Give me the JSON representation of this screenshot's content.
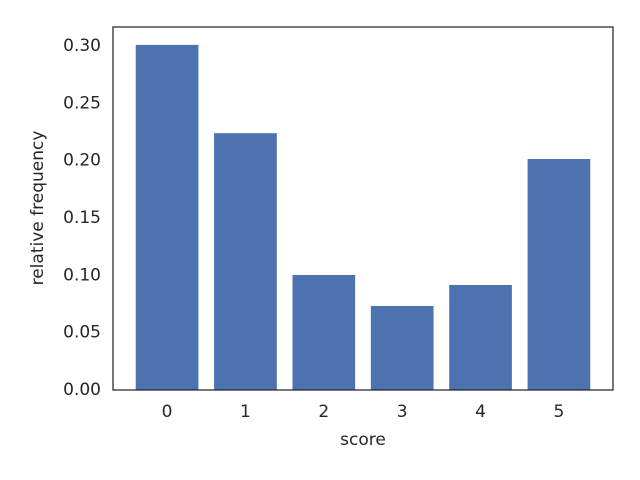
{
  "chart_data": {
    "type": "bar",
    "x": [
      0,
      1,
      2,
      3,
      4,
      5
    ],
    "values": [
      0.301,
      0.224,
      0.1003,
      0.0733,
      0.0916,
      0.2015
    ],
    "color": "#4c72b0",
    "bar_width": 0.8,
    "xlabel": "score",
    "ylabel": "relative frequency",
    "xlim": [
      -0.69,
      5.69
    ],
    "xticks": [
      0,
      1,
      2,
      3,
      4,
      5
    ],
    "ylim": [
      0,
      0.3166
    ],
    "yticks": [
      {
        "value": 0,
        "label": "0.00"
      },
      {
        "value": 0.05,
        "label": "0.05"
      },
      {
        "value": 0.1,
        "label": "0.10"
      },
      {
        "value": 0.15,
        "label": "0.15"
      },
      {
        "value": 0.2,
        "label": "0.20"
      },
      {
        "value": 0.25,
        "label": "0.25"
      },
      {
        "value": 0.3,
        "label": "0.30"
      }
    ],
    "grid": false
  }
}
